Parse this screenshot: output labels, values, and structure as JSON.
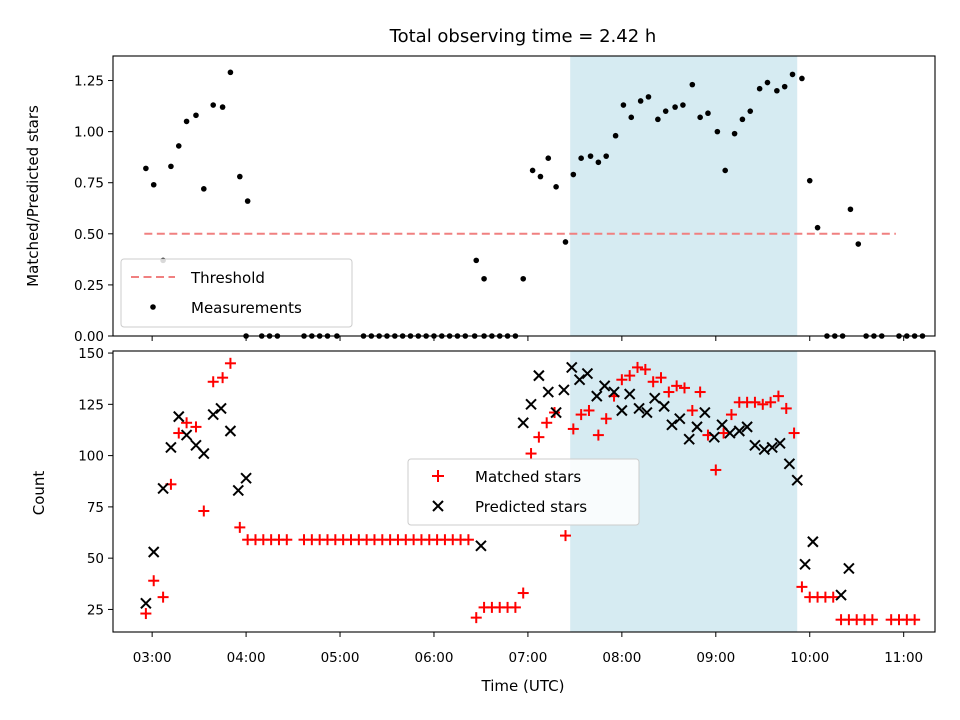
{
  "colors": {
    "threshold": "#f08080",
    "measurement": "#000000",
    "matched": "#ff0000",
    "predicted": "#000000",
    "highlight": "#add8e6"
  },
  "chart_data": [
    {
      "type": "scatter",
      "title": "Total observing time = 2.42 h",
      "xlabel": "",
      "ylabel": "Matched/Predicted stars",
      "xlim": [
        "02:35",
        "11:20"
      ],
      "ylim": [
        0,
        1.37
      ],
      "yticks": [
        "0.00",
        "0.25",
        "0.50",
        "0.75",
        "1.00",
        "1.25"
      ],
      "highlight_span": [
        "07:27",
        "09:52"
      ],
      "legend": {
        "position": "lower-left",
        "entries": [
          "Threshold",
          "Measurements"
        ]
      },
      "threshold": {
        "name": "Threshold",
        "x": [
          "02:55",
          "10:55"
        ],
        "y": 0.5
      },
      "series": [
        {
          "name": "Measurements",
          "points": [
            [
              "02:56",
              0.82
            ],
            [
              "03:01",
              0.74
            ],
            [
              "03:07",
              0.37
            ],
            [
              "03:12",
              0.83
            ],
            [
              "03:17",
              0.93
            ],
            [
              "03:22",
              1.05
            ],
            [
              "03:28",
              1.08
            ],
            [
              "03:33",
              0.72
            ],
            [
              "03:39",
              1.13
            ],
            [
              "03:45",
              1.12
            ],
            [
              "03:50",
              1.29
            ],
            [
              "03:56",
              0.78
            ],
            [
              "04:01",
              0.66
            ],
            [
              "04:00",
              0.0
            ],
            [
              "04:10",
              0.0
            ],
            [
              "04:15",
              0.0
            ],
            [
              "04:20",
              0.0
            ],
            [
              "04:37",
              0.0
            ],
            [
              "04:42",
              0.0
            ],
            [
              "04:47",
              0.0
            ],
            [
              "04:52",
              0.0
            ],
            [
              "04:58",
              0.0
            ],
            [
              "05:15",
              0.0
            ],
            [
              "05:20",
              0.0
            ],
            [
              "05:25",
              0.0
            ],
            [
              "05:30",
              0.0
            ],
            [
              "05:35",
              0.0
            ],
            [
              "05:40",
              0.0
            ],
            [
              "05:45",
              0.0
            ],
            [
              "05:50",
              0.0
            ],
            [
              "05:55",
              0.0
            ],
            [
              "06:00",
              0.0
            ],
            [
              "06:05",
              0.0
            ],
            [
              "06:10",
              0.0
            ],
            [
              "06:15",
              0.0
            ],
            [
              "06:20",
              0.0
            ],
            [
              "06:26",
              0.0
            ],
            [
              "06:27",
              0.37
            ],
            [
              "06:32",
              0.28
            ],
            [
              "06:32",
              0.0
            ],
            [
              "06:37",
              0.0
            ],
            [
              "06:42",
              0.0
            ],
            [
              "06:47",
              0.0
            ],
            [
              "06:52",
              0.0
            ],
            [
              "06:57",
              0.28
            ],
            [
              "07:03",
              0.81
            ],
            [
              "07:08",
              0.78
            ],
            [
              "07:13",
              0.87
            ],
            [
              "07:18",
              0.73
            ],
            [
              "07:24",
              0.46
            ],
            [
              "07:29",
              0.79
            ],
            [
              "07:34",
              0.87
            ],
            [
              "07:40",
              0.88
            ],
            [
              "07:45",
              0.85
            ],
            [
              "07:50",
              0.88
            ],
            [
              "07:56",
              0.98
            ],
            [
              "08:01",
              1.13
            ],
            [
              "08:06",
              1.07
            ],
            [
              "08:12",
              1.15
            ],
            [
              "08:17",
              1.17
            ],
            [
              "08:23",
              1.06
            ],
            [
              "08:28",
              1.1
            ],
            [
              "08:34",
              1.12
            ],
            [
              "08:39",
              1.13
            ],
            [
              "08:45",
              1.23
            ],
            [
              "08:50",
              1.07
            ],
            [
              "08:55",
              1.09
            ],
            [
              "09:01",
              1.0
            ],
            [
              "09:06",
              0.81
            ],
            [
              "09:12",
              0.99
            ],
            [
              "09:17",
              1.06
            ],
            [
              "09:22",
              1.1
            ],
            [
              "09:28",
              1.21
            ],
            [
              "09:33",
              1.24
            ],
            [
              "09:39",
              1.2
            ],
            [
              "09:44",
              1.22
            ],
            [
              "09:49",
              1.28
            ],
            [
              "09:55",
              1.26
            ],
            [
              "10:00",
              0.76
            ],
            [
              "10:05",
              0.53
            ],
            [
              "10:11",
              0.0
            ],
            [
              "10:16",
              0.0
            ],
            [
              "10:21",
              0.0
            ],
            [
              "10:26",
              0.62
            ],
            [
              "10:31",
              0.45
            ],
            [
              "10:36",
              0.0
            ],
            [
              "10:41",
              0.0
            ],
            [
              "10:46",
              0.0
            ],
            [
              "10:57",
              0.0
            ],
            [
              "11:02",
              0.0
            ],
            [
              "11:07",
              0.0
            ],
            [
              "11:12",
              0.0
            ]
          ]
        }
      ]
    },
    {
      "type": "scatter",
      "title": "",
      "xlabel": "Time (UTC)",
      "ylabel": "Count",
      "xlim": [
        "02:35",
        "11:20"
      ],
      "ylim": [
        14,
        151
      ],
      "yticks": [
        "25",
        "50",
        "75",
        "100",
        "125",
        "150"
      ],
      "xticks": [
        "03:00",
        "04:00",
        "05:00",
        "06:00",
        "07:00",
        "08:00",
        "09:00",
        "10:00",
        "11:00"
      ],
      "highlight_span": [
        "07:27",
        "09:52"
      ],
      "legend": {
        "position": "center",
        "entries": [
          "Matched stars",
          "Predicted stars"
        ]
      },
      "series": [
        {
          "name": "Matched stars",
          "marker": "+",
          "points": [
            [
              "02:56",
              23
            ],
            [
              "03:01",
              39
            ],
            [
              "03:07",
              31
            ],
            [
              "03:12",
              86
            ],
            [
              "03:17",
              111
            ],
            [
              "03:22",
              116
            ],
            [
              "03:28",
              114
            ],
            [
              "03:33",
              73
            ],
            [
              "03:39",
              136
            ],
            [
              "03:45",
              138
            ],
            [
              "03:50",
              145
            ],
            [
              "03:56",
              65
            ],
            [
              "04:01",
              59
            ],
            [
              "04:06",
              59
            ],
            [
              "04:11",
              59
            ],
            [
              "04:16",
              59
            ],
            [
              "04:21",
              59
            ],
            [
              "04:26",
              59
            ],
            [
              "04:37",
              59
            ],
            [
              "04:42",
              59
            ],
            [
              "04:47",
              59
            ],
            [
              "04:52",
              59
            ],
            [
              "04:57",
              59
            ],
            [
              "05:02",
              59
            ],
            [
              "05:07",
              59
            ],
            [
              "05:12",
              59
            ],
            [
              "05:17",
              59
            ],
            [
              "05:22",
              59
            ],
            [
              "05:27",
              59
            ],
            [
              "05:32",
              59
            ],
            [
              "05:37",
              59
            ],
            [
              "05:42",
              59
            ],
            [
              "05:47",
              59
            ],
            [
              "05:52",
              59
            ],
            [
              "05:57",
              59
            ],
            [
              "06:02",
              59
            ],
            [
              "06:07",
              59
            ],
            [
              "06:12",
              59
            ],
            [
              "06:17",
              59
            ],
            [
              "06:22",
              59
            ],
            [
              "06:27",
              21
            ],
            [
              "06:32",
              26
            ],
            [
              "06:37",
              26
            ],
            [
              "06:42",
              26
            ],
            [
              "06:47",
              26
            ],
            [
              "06:52",
              26
            ],
            [
              "06:57",
              33
            ],
            [
              "07:02",
              101
            ],
            [
              "07:07",
              109
            ],
            [
              "07:12",
              116
            ],
            [
              "07:17",
              121
            ],
            [
              "07:24",
              61
            ],
            [
              "07:29",
              113
            ],
            [
              "07:34",
              120
            ],
            [
              "07:39",
              122
            ],
            [
              "07:45",
              110
            ],
            [
              "07:50",
              118
            ],
            [
              "07:55",
              129
            ],
            [
              "08:00",
              137
            ],
            [
              "08:05",
              139
            ],
            [
              "08:10",
              143
            ],
            [
              "08:15",
              142
            ],
            [
              "08:20",
              136
            ],
            [
              "08:25",
              138
            ],
            [
              "08:30",
              131
            ],
            [
              "08:35",
              134
            ],
            [
              "08:40",
              133
            ],
            [
              "08:45",
              122
            ],
            [
              "08:50",
              131
            ],
            [
              "08:55",
              110
            ],
            [
              "09:00",
              93
            ],
            [
              "09:05",
              111
            ],
            [
              "09:10",
              120
            ],
            [
              "09:15",
              126
            ],
            [
              "09:20",
              126
            ],
            [
              "09:25",
              126
            ],
            [
              "09:30",
              125
            ],
            [
              "09:35",
              126
            ],
            [
              "09:40",
              129
            ],
            [
              "09:45",
              123
            ],
            [
              "09:50",
              111
            ],
            [
              "09:55",
              36
            ],
            [
              "10:00",
              31
            ],
            [
              "10:05",
              31
            ],
            [
              "10:10",
              31
            ],
            [
              "10:15",
              31
            ],
            [
              "10:20",
              20
            ],
            [
              "10:25",
              20
            ],
            [
              "10:30",
              20
            ],
            [
              "10:35",
              20
            ],
            [
              "10:40",
              20
            ],
            [
              "10:52",
              20
            ],
            [
              "10:57",
              20
            ],
            [
              "11:02",
              20
            ],
            [
              "11:07",
              20
            ]
          ]
        },
        {
          "name": "Predicted stars",
          "marker": "x",
          "points": [
            [
              "02:56",
              28
            ],
            [
              "03:01",
              53
            ],
            [
              "03:07",
              84
            ],
            [
              "03:12",
              104
            ],
            [
              "03:17",
              119
            ],
            [
              "03:22",
              110
            ],
            [
              "03:28",
              105
            ],
            [
              "03:33",
              101
            ],
            [
              "03:39",
              120
            ],
            [
              "03:44",
              123
            ],
            [
              "03:50",
              112
            ],
            [
              "03:55",
              83
            ],
            [
              "04:00",
              89
            ],
            [
              "06:30",
              56
            ],
            [
              "06:57",
              116
            ],
            [
              "07:02",
              125
            ],
            [
              "07:07",
              139
            ],
            [
              "07:13",
              131
            ],
            [
              "07:18",
              121
            ],
            [
              "07:23",
              132
            ],
            [
              "07:28",
              143
            ],
            [
              "07:33",
              137
            ],
            [
              "07:38",
              140
            ],
            [
              "07:44",
              129
            ],
            [
              "07:49",
              134
            ],
            [
              "07:55",
              131
            ],
            [
              "08:00",
              122
            ],
            [
              "08:05",
              130
            ],
            [
              "08:11",
              123
            ],
            [
              "08:16",
              121
            ],
            [
              "08:21",
              128
            ],
            [
              "08:27",
              124
            ],
            [
              "08:32",
              115
            ],
            [
              "08:37",
              118
            ],
            [
              "08:43",
              108
            ],
            [
              "08:48",
              114
            ],
            [
              "08:53",
              121
            ],
            [
              "08:59",
              109
            ],
            [
              "09:04",
              115
            ],
            [
              "09:09",
              111
            ],
            [
              "09:15",
              112
            ],
            [
              "09:20",
              114
            ],
            [
              "09:25",
              105
            ],
            [
              "09:31",
              103
            ],
            [
              "09:36",
              104
            ],
            [
              "09:41",
              106
            ],
            [
              "09:47",
              96
            ],
            [
              "09:52",
              88
            ],
            [
              "09:57",
              47
            ],
            [
              "10:02",
              58
            ],
            [
              "10:20",
              32
            ],
            [
              "10:25",
              45
            ]
          ]
        }
      ]
    }
  ]
}
